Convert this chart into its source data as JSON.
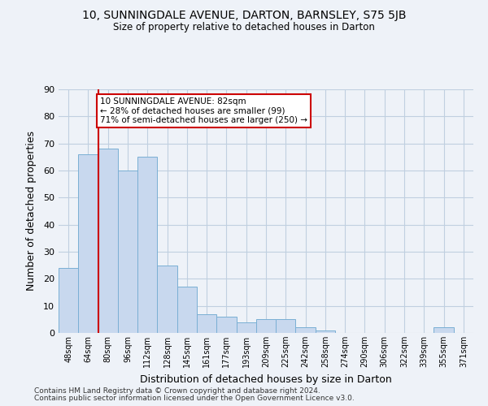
{
  "title": "10, SUNNINGDALE AVENUE, DARTON, BARNSLEY, S75 5JB",
  "subtitle": "Size of property relative to detached houses in Darton",
  "xlabel": "Distribution of detached houses by size in Darton",
  "ylabel": "Number of detached properties",
  "categories": [
    "48sqm",
    "64sqm",
    "80sqm",
    "96sqm",
    "112sqm",
    "128sqm",
    "145sqm",
    "161sqm",
    "177sqm",
    "193sqm",
    "209sqm",
    "225sqm",
    "242sqm",
    "258sqm",
    "274sqm",
    "290sqm",
    "306sqm",
    "322sqm",
    "339sqm",
    "355sqm",
    "371sqm"
  ],
  "values": [
    24,
    66,
    68,
    60,
    65,
    25,
    17,
    7,
    6,
    4,
    5,
    5,
    2,
    1,
    0,
    0,
    0,
    0,
    0,
    2,
    0
  ],
  "bar_color": "#c8d8ee",
  "bar_edge_color": "#7aafd4",
  "grid_color": "#c0cfe0",
  "background_color": "#eef2f8",
  "red_line_index": 2,
  "red_line_color": "#cc0000",
  "annotation_line1": "10 SUNNINGDALE AVENUE: 82sqm",
  "annotation_line2": "← 28% of detached houses are smaller (99)",
  "annotation_line3": "71% of semi-detached houses are larger (250) →",
  "annotation_box_color": "#ffffff",
  "annotation_box_edge_color": "#cc0000",
  "ylim": [
    0,
    90
  ],
  "yticks": [
    0,
    10,
    20,
    30,
    40,
    50,
    60,
    70,
    80,
    90
  ],
  "footer1": "Contains HM Land Registry data © Crown copyright and database right 2024.",
  "footer2": "Contains public sector information licensed under the Open Government Licence v3.0."
}
